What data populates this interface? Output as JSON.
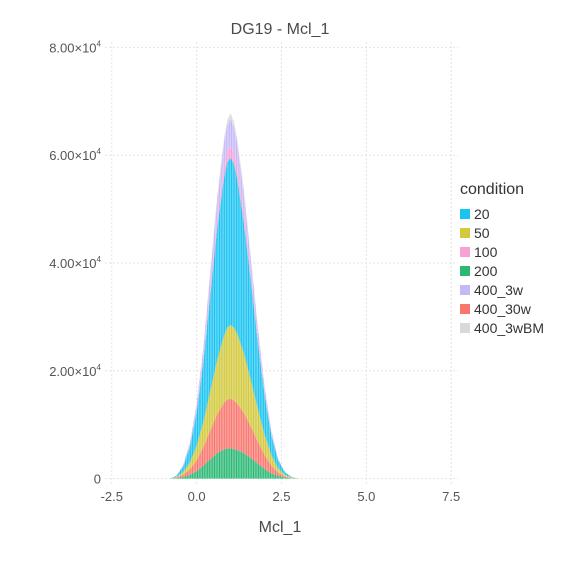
{
  "chart_data": {
    "type": "area",
    "subtype": "stacked-histogram",
    "title": "DG19 - Mcl_1",
    "xlabel": "Mcl_1",
    "ylabel": "",
    "xlim": [
      -2.7,
      7.7
    ],
    "ylim": [
      -1000,
      81000
    ],
    "x_ticks": [
      -2.5,
      0.0,
      2.5,
      5.0,
      7.5
    ],
    "x_tick_labels": [
      "-2.5",
      "0.0",
      "2.5",
      "5.0",
      "7.5"
    ],
    "y_ticks": [
      0,
      20000,
      40000,
      60000,
      80000
    ],
    "y_tick_labels": [
      {
        "mantissa": "0",
        "exp": ""
      },
      {
        "mantissa": "2.00×10",
        "exp": "4"
      },
      {
        "mantissa": "4.00×10",
        "exp": "4"
      },
      {
        "mantissa": "6.00×10",
        "exp": "4"
      },
      {
        "mantissa": "8.00×10",
        "exp": "4"
      }
    ],
    "grid": true,
    "legend_title": "condition",
    "legend_position": "right",
    "x": [
      -0.8,
      -0.6,
      -0.4,
      -0.2,
      0.0,
      0.2,
      0.4,
      0.6,
      0.8,
      0.9,
      1.0,
      1.1,
      1.2,
      1.4,
      1.6,
      1.8,
      2.0,
      2.2,
      2.4,
      2.6,
      2.8,
      3.0
    ],
    "series": [
      {
        "name": "200",
        "color": "#2ab873",
        "values": [
          0,
          100,
          300,
          700,
          1400,
          2400,
          3600,
          4700,
          5400,
          5600,
          5600,
          5500,
          5300,
          4700,
          3800,
          2800,
          1800,
          1000,
          500,
          200,
          50,
          0
        ]
      },
      {
        "name": "400_30w",
        "color": "#f8766d",
        "values": [
          0,
          100,
          400,
          1000,
          2000,
          3500,
          5300,
          7200,
          8600,
          9100,
          9200,
          9000,
          8600,
          7400,
          5800,
          4100,
          2600,
          1400,
          600,
          200,
          50,
          0
        ]
      },
      {
        "name": "50",
        "color": "#d2c93c",
        "values": [
          0,
          100,
          500,
          1300,
          2700,
          4700,
          7300,
          10000,
          12400,
          13300,
          13700,
          13500,
          12900,
          11000,
          8600,
          6100,
          3800,
          2000,
          800,
          300,
          100,
          0
        ]
      },
      {
        "name": "20",
        "color": "#19c3f2",
        "values": [
          0,
          200,
          1000,
          2900,
          6200,
          11200,
          17800,
          24300,
          29200,
          30700,
          31100,
          30400,
          28700,
          24000,
          18300,
          12500,
          7400,
          3700,
          1500,
          500,
          100,
          0
        ]
      },
      {
        "name": "100",
        "color": "#f7a1d4",
        "values": [
          0,
          0,
          100,
          200,
          500,
          800,
          1200,
          1600,
          2000,
          2000,
          2100,
          2000,
          2000,
          1700,
          1300,
          900,
          500,
          300,
          100,
          0,
          0,
          0
        ]
      },
      {
        "name": "400_3w",
        "color": "#c6b8f7",
        "values": [
          0,
          0,
          200,
          500,
          1000,
          1700,
          2700,
          3500,
          4400,
          4800,
          5100,
          4800,
          4500,
          3600,
          2600,
          1700,
          1000,
          500,
          200,
          0,
          0,
          0
        ]
      },
      {
        "name": "400_3wBM",
        "color": "#d9d9d9",
        "values": [
          0,
          0,
          0,
          100,
          200,
          400,
          600,
          800,
          900,
          1000,
          1000,
          1000,
          900,
          800,
          600,
          400,
          200,
          100,
          0,
          0,
          0,
          0
        ]
      }
    ],
    "legend": [
      {
        "name": "20",
        "color": "#19c3f2"
      },
      {
        "name": "50",
        "color": "#d2c93c"
      },
      {
        "name": "100",
        "color": "#f7a1d4"
      },
      {
        "name": "200",
        "color": "#2ab873"
      },
      {
        "name": "400_3w",
        "color": "#c6b8f7"
      },
      {
        "name": "400_30w",
        "color": "#f8766d"
      },
      {
        "name": "400_3wBM",
        "color": "#d9d9d9"
      }
    ]
  }
}
